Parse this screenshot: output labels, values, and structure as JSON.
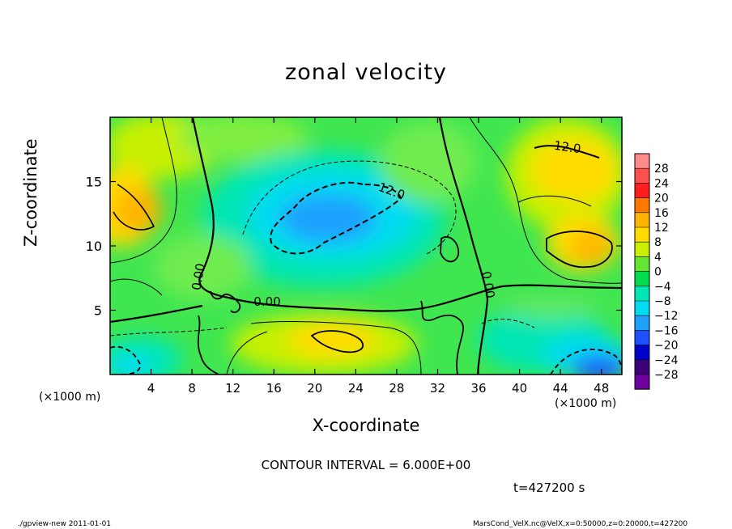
{
  "chart_data": {
    "type": "heatmap",
    "title": "zonal velocity",
    "xlabel": "X-coordinate",
    "ylabel": "Z-coordinate",
    "x_unit": "(×1000 m)",
    "z_unit": "(×1000 m)",
    "xlim": [
      0,
      50
    ],
    "ylim": [
      0,
      20
    ],
    "xticks": [
      4,
      8,
      12,
      16,
      20,
      24,
      28,
      32,
      36,
      40,
      44,
      48
    ],
    "yticks": [
      5,
      10,
      15
    ],
    "colorbar_levels": [
      28,
      24,
      20,
      16,
      12,
      8,
      4,
      0,
      -4,
      -8,
      -12,
      -16,
      -20,
      -24,
      -28
    ],
    "colorbar_colors": [
      "#ff8c8c",
      "#ff5050",
      "#ff1e1e",
      "#ff7800",
      "#ffb400",
      "#ffdc00",
      "#c8f000",
      "#64e632",
      "#00dc50",
      "#00e6b4",
      "#00dcf0",
      "#1ea0ff",
      "#1e50ff",
      "#0000c8",
      "#3c0078",
      "#6e00a0"
    ],
    "contour_labels": [
      "12.0",
      "12.0",
      "0.00",
      "0.00",
      "0.00"
    ],
    "contour_interval_text": "CONTOUR INTERVAL = 6.000E+00",
    "time_text": "t=427200 s",
    "grid": false
  },
  "footer": {
    "left": "./gpview-new   2011-01-01",
    "right": "MarsCond_VelX.nc@VelX,x=0:50000,z=0:20000,t=427200"
  }
}
